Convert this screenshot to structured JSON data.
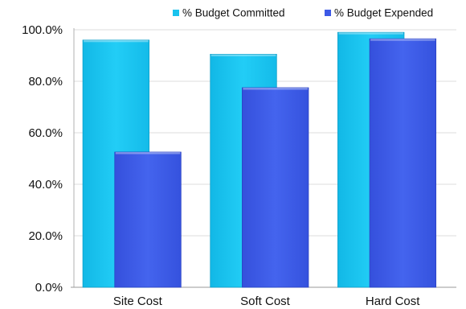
{
  "chart_data": {
    "type": "bar",
    "categories": [
      "Site Cost",
      "Soft Cost",
      "Hard Cost"
    ],
    "series": [
      {
        "name": "% Budget Committed",
        "values": [
          96,
          90.5,
          99
        ],
        "color": "#19c3ee"
      },
      {
        "name": "% Budget Expended",
        "values": [
          52.5,
          77.5,
          96.5
        ],
        "color": "#3d59e6"
      }
    ],
    "y_ticks": [
      "0.0%",
      "20.0%",
      "40.0%",
      "60.0%",
      "80.0%",
      "100.0%"
    ],
    "y_tick_values": [
      0,
      20,
      40,
      60,
      80,
      100
    ],
    "ylim": [
      0,
      100
    ],
    "grid": true,
    "legend_placement": "top-right"
  }
}
